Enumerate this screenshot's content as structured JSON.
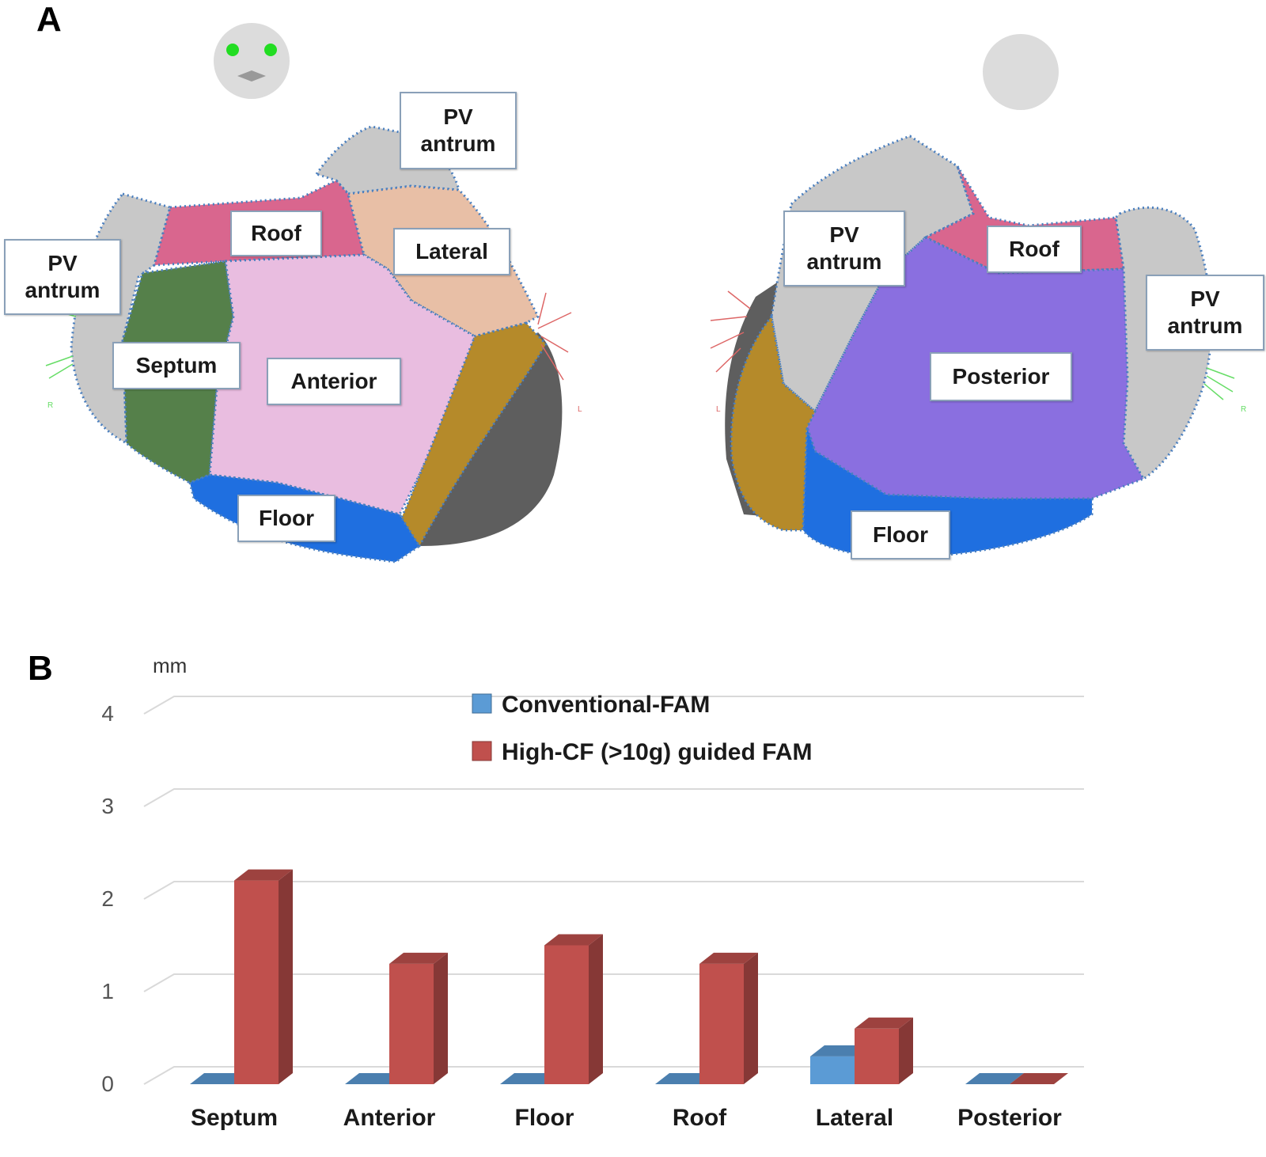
{
  "panel_a": {
    "letter": "A",
    "left_view": {
      "labels": {
        "pv_antrum_top": "PV\nantrum",
        "pv_antrum_left": "PV\nantrum",
        "roof": "Roof",
        "lateral": "Lateral",
        "septum": "Septum",
        "anterior": "Anterior",
        "floor": "Floor"
      },
      "axis_marks": {
        "left": "R",
        "right": "L"
      }
    },
    "right_view": {
      "labels": {
        "pv_antrum_left": "PV\nantrum",
        "pv_antrum_right": "PV\nantrum",
        "roof": "Roof",
        "posterior": "Posterior",
        "floor": "Floor"
      },
      "axis_marks": {
        "left": "L",
        "right": "R"
      }
    },
    "colors": {
      "pv_antrum": "#c8c8c8",
      "roof": "#d9668e",
      "lateral": "#e8bfa6",
      "septum": "#55804a",
      "anterior": "#e9bde0",
      "floor": "#1f6fe0",
      "appendage": "#b58a2a",
      "posterior": "#8a6fe0",
      "boundary": "#4a7fbf"
    }
  },
  "panel_b": {
    "letter": "B",
    "chart_data": {
      "type": "bar",
      "ylabel": "mm",
      "ylim": [
        0,
        4
      ],
      "yticks": [
        "0",
        "1",
        "2",
        "3",
        "4"
      ],
      "categories": [
        "Septum",
        "Anterior",
        "Floor",
        "Roof",
        "Lateral",
        "Posterior"
      ],
      "series": [
        {
          "name": "Conventional-FAM",
          "values": [
            0,
            0,
            0,
            0,
            0.3,
            0
          ],
          "color": "#5b9bd5"
        },
        {
          "name": "High-CF (>10g) guided FAM",
          "values": [
            2.2,
            1.3,
            1.5,
            1.3,
            0.6,
            0
          ],
          "color": "#c0504d"
        }
      ],
      "legend_position": "top-center",
      "grid": true,
      "style": "3d-clustered-column"
    }
  }
}
